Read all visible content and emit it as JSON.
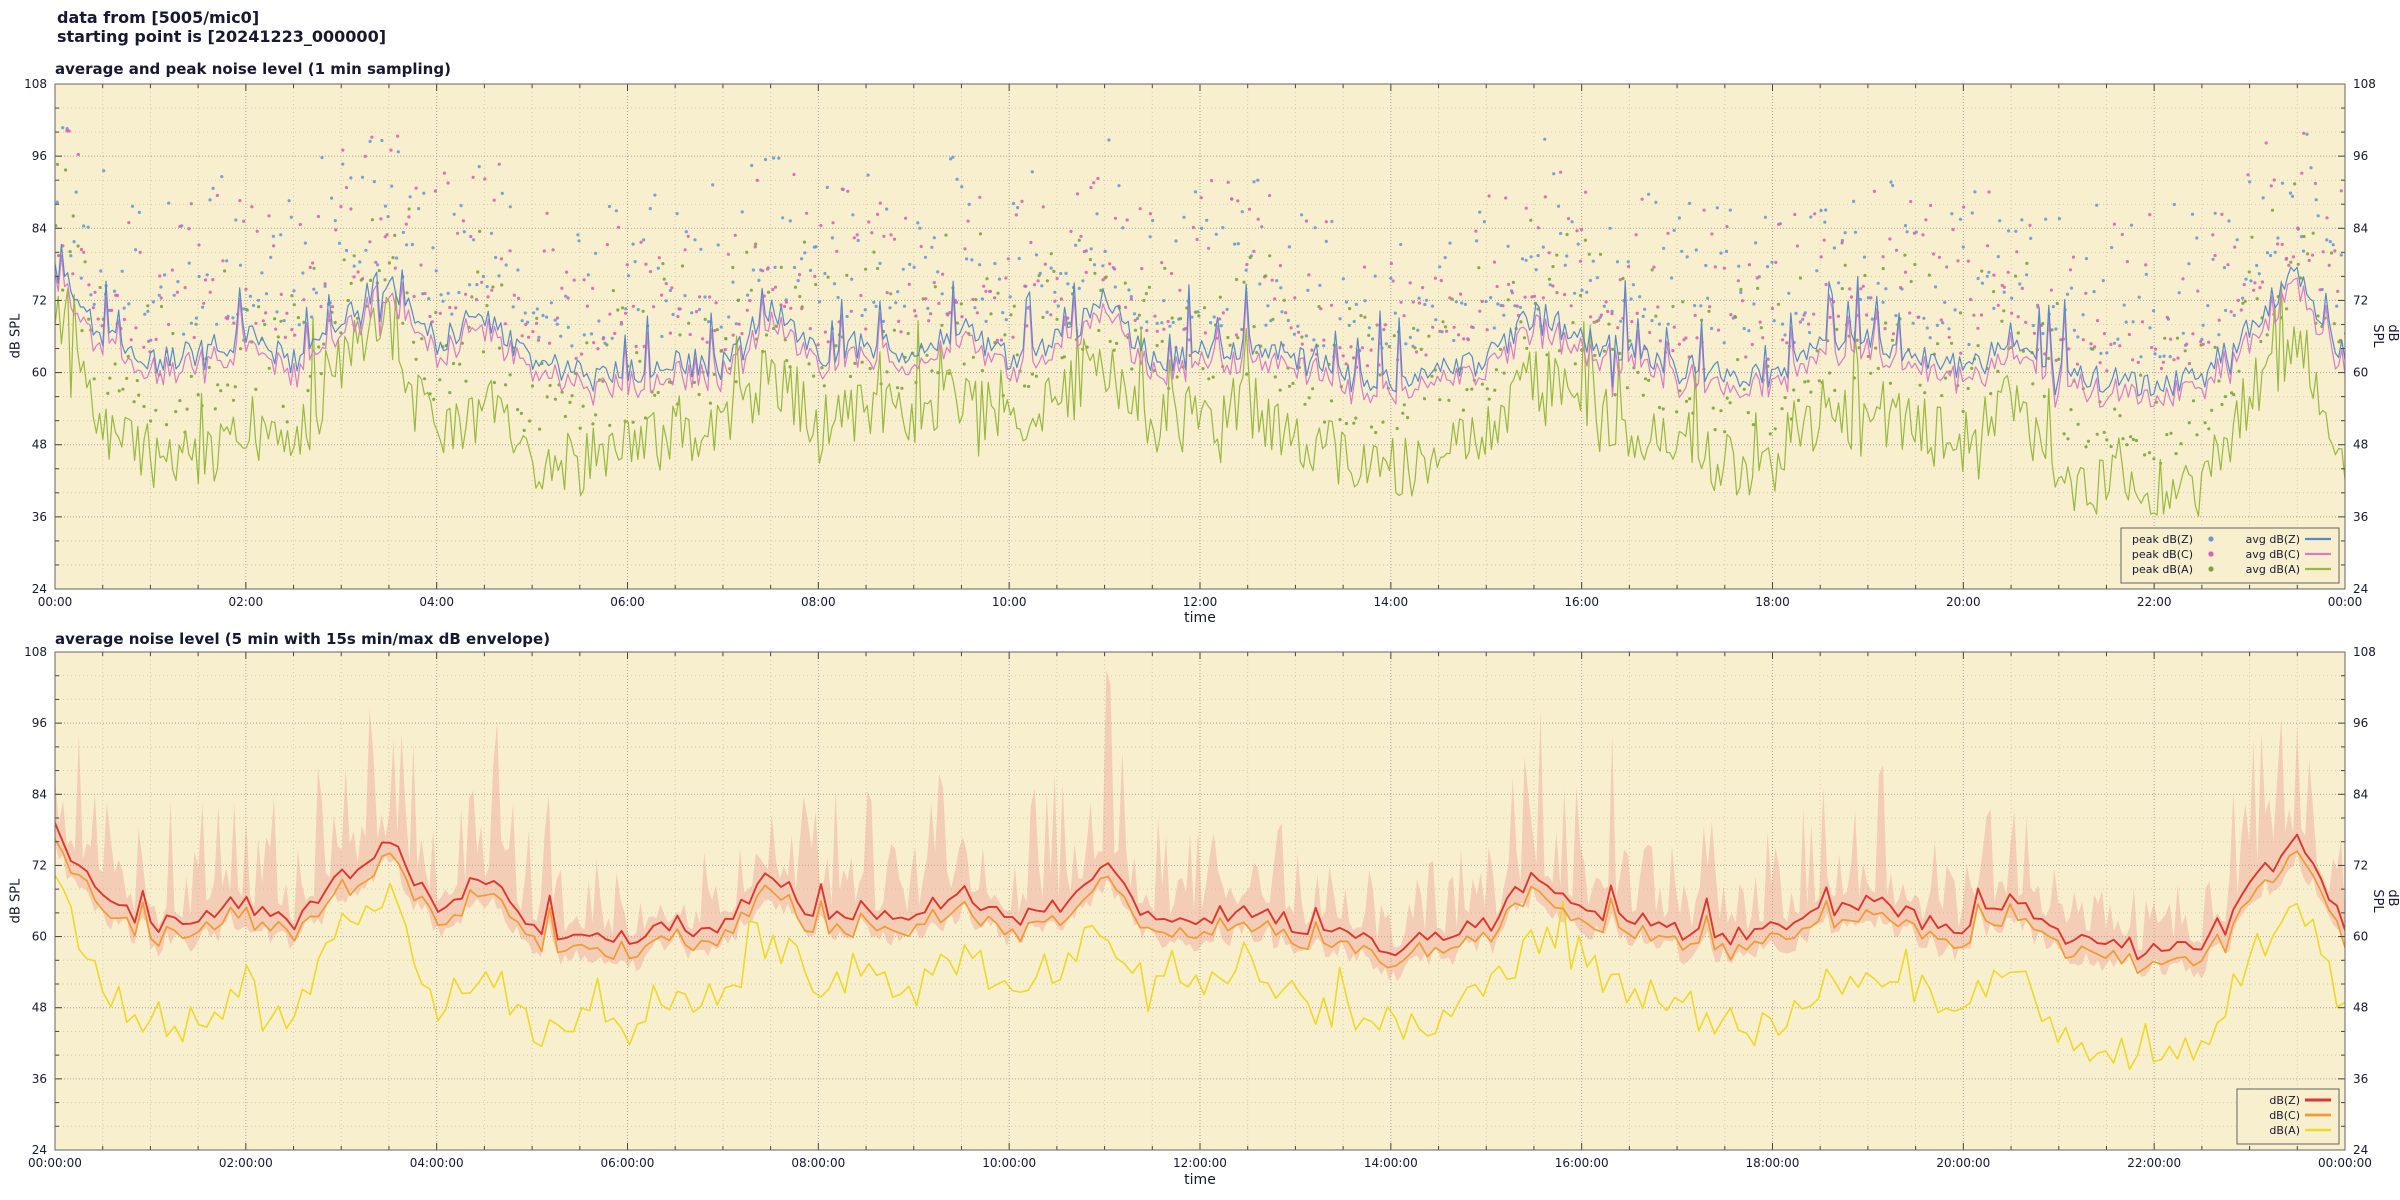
{
  "header": {
    "line1": "data from [5005/mic0]",
    "line2": "starting point is [20241223_000000]"
  },
  "colors": {
    "page_bg": "#ffffff",
    "plot_bg": "#f7efcd",
    "grid_major": "#8f8f8f",
    "grid_minor": "#bdb58f",
    "border": "#666666",
    "tick": "#444444",
    "text": "#181830"
  },
  "chart_data": [
    {
      "type": "line",
      "title": "average and peak noise level (1 min sampling)",
      "xlabel": "time",
      "ylabel_left": "dB SPL",
      "ylabel_right": "dB SPL",
      "ylim": [
        24,
        108
      ],
      "y_ticks": [
        24,
        36,
        48,
        60,
        72,
        84,
        96,
        108
      ],
      "x_tick_labels": [
        "00:00",
        "02:00",
        "04:00",
        "06:00",
        "08:00",
        "10:00",
        "12:00",
        "14:00",
        "16:00",
        "18:00",
        "20:00",
        "22:00",
        "00:00"
      ],
      "x_range_hours": 24,
      "grid": true,
      "legend_position": "bottom-right",
      "legend_cols": [
        [
          "peak dB(Z)",
          "peak dB(C)",
          "peak dB(A)"
        ],
        [
          "avg dB(Z)",
          "avg dB(C)",
          "avg dB(A)"
        ]
      ],
      "series": [
        {
          "name": "peak dB(Z)",
          "style": "dots",
          "color": "#6699dd",
          "points": 620,
          "derive": {
            "from": "avg dB(Z)",
            "offset": 5,
            "spread": 24
          }
        },
        {
          "name": "peak dB(C)",
          "style": "dots",
          "color": "#df5fb5",
          "points": 620,
          "derive": {
            "from": "avg dB(Z)",
            "offset": 3,
            "spread": 24
          }
        },
        {
          "name": "peak dB(A)",
          "style": "dots",
          "color": "#7da33a",
          "points": 620,
          "derive": {
            "from": "avg dB(A)",
            "offset": 6,
            "spread": 22
          }
        },
        {
          "name": "avg dB(A)",
          "style": "line",
          "color": "#99b83e",
          "lw": 1.2,
          "resolution_min": 2,
          "jitter": 5.5,
          "spike_prob": 0.07,
          "spike_amp": 12,
          "floor": 36,
          "keyframes_30min": [
            70,
            50,
            46,
            45,
            52,
            46,
            62,
            68,
            48,
            55,
            44,
            45,
            47,
            50,
            50,
            60,
            52,
            55,
            51,
            57,
            51,
            55,
            61,
            51,
            53,
            55,
            50,
            46,
            44,
            46,
            50,
            60,
            55,
            51,
            49,
            45,
            44,
            52,
            55,
            51,
            49,
            55,
            43,
            41,
            40,
            41,
            56,
            66,
            47
          ]
        },
        {
          "name": "avg dB(C)",
          "style": "line",
          "color": "#d97bc9",
          "lw": 1.2,
          "derive": {
            "from": "avg dB(Z)",
            "offset": -2
          }
        },
        {
          "name": "avg dB(Z)",
          "style": "line",
          "color": "#5a8ac6",
          "lw": 1.2,
          "resolution_min": 2,
          "jitter": 2.4,
          "spike_prob": 0.05,
          "spike_amp": 11,
          "keyframes_30min": [
            78,
            66,
            62,
            63,
            66,
            62,
            70,
            76,
            65,
            70,
            62,
            60,
            60,
            62,
            61,
            71,
            63,
            65,
            63,
            68,
            62,
            65,
            72,
            62,
            63,
            65,
            62,
            60,
            58,
            60,
            62,
            70,
            66,
            63,
            61,
            60,
            60,
            64,
            66,
            63,
            61,
            66,
            60,
            59,
            58,
            59,
            68,
            77,
            62
          ]
        }
      ]
    },
    {
      "type": "line",
      "title": "average noise level (5 min with 15s min/max dB envelope)",
      "xlabel": "time",
      "ylabel_left": "dB SPL",
      "ylabel_right": "dB SPL",
      "ylim": [
        24,
        108
      ],
      "y_ticks": [
        24,
        36,
        48,
        60,
        72,
        84,
        96,
        108
      ],
      "x_tick_labels": [
        "00:00:00",
        "02:00:00",
        "04:00:00",
        "06:00:00",
        "08:00:00",
        "10:00:00",
        "12:00:00",
        "14:00:00",
        "16:00:00",
        "18:00:00",
        "20:00:00",
        "22:00:00",
        "00:00:00"
      ],
      "x_range_hours": 24,
      "grid": true,
      "legend_position": "bottom-right",
      "legend_cols": [
        [
          "dB(Z)",
          "dB(C)",
          "dB(A)"
        ]
      ],
      "series": [
        {
          "name": "15s min/max dB envelope",
          "style": "envelope",
          "color": "#ee9e94",
          "opacity": 0.42,
          "points": 576,
          "derive": {
            "from": "dB(Z)"
          }
        },
        {
          "name": "dB(A)",
          "style": "line",
          "color": "#ecd92b",
          "lw": 1.6,
          "resolution_min": 5,
          "jitter": 3.2,
          "spike_prob": 0.05,
          "spike_amp": 9,
          "floor": 37,
          "keyframes_30min": [
            70,
            50,
            46,
            45,
            52,
            46,
            62,
            68,
            48,
            55,
            44,
            45,
            47,
            50,
            50,
            60,
            52,
            55,
            51,
            57,
            51,
            55,
            61,
            51,
            53,
            55,
            50,
            46,
            44,
            46,
            50,
            60,
            55,
            51,
            49,
            45,
            44,
            52,
            55,
            51,
            49,
            55,
            43,
            41,
            40,
            41,
            56,
            66,
            47
          ]
        },
        {
          "name": "dB(C)",
          "style": "line",
          "color": "#f29a33",
          "lw": 1.7,
          "derive": {
            "from": "dB(Z)",
            "offset": -2.3
          }
        },
        {
          "name": "dB(Z)",
          "style": "line",
          "color": "#dc362e",
          "lw": 1.9,
          "resolution_min": 5,
          "jitter": 1.6,
          "spike_prob": 0.04,
          "spike_amp": 7,
          "keyframes_30min": [
            78,
            66,
            62,
            63,
            66,
            62,
            70,
            76,
            65,
            70,
            62,
            60,
            60,
            62,
            61,
            71,
            63,
            65,
            63,
            68,
            62,
            65,
            72,
            62,
            63,
            65,
            62,
            60,
            58,
            60,
            62,
            70,
            66,
            63,
            61,
            60,
            60,
            64,
            66,
            63,
            61,
            66,
            60,
            59,
            58,
            59,
            68,
            77,
            62
          ]
        }
      ]
    }
  ]
}
